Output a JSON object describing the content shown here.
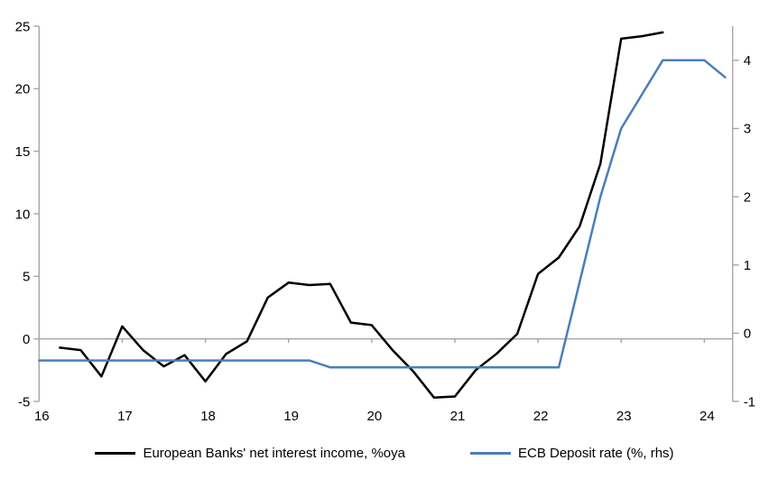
{
  "chart_data": {
    "type": "line",
    "title": "",
    "x_axis": {
      "ticks": [
        16,
        17,
        18,
        19,
        20,
        21,
        22,
        23,
        24
      ],
      "range": [
        16,
        24.34
      ]
    },
    "y_axis_left": {
      "ticks": [
        -5,
        0,
        5,
        10,
        15,
        20,
        25
      ],
      "range": [
        -5,
        25
      ]
    },
    "y_axis_right": {
      "ticks": [
        -1,
        0,
        1,
        2,
        3,
        4
      ],
      "range": [
        -1,
        4.5
      ]
    },
    "grid": false,
    "zero_line": true,
    "legend_position": "bottom",
    "series": [
      {
        "name": "European Banks' net interest income, %oya",
        "axis": "left",
        "color": "#000000",
        "x": [
          16.25,
          16.5,
          16.75,
          17.0,
          17.25,
          17.5,
          17.75,
          18.0,
          18.25,
          18.5,
          18.75,
          19.0,
          19.25,
          19.5,
          19.75,
          20.0,
          20.25,
          20.5,
          20.75,
          21.0,
          21.25,
          21.5,
          21.75,
          22.0,
          22.25,
          22.5,
          22.75,
          23.0,
          23.25,
          23.5
        ],
        "values": [
          -0.7,
          -0.9,
          -3.0,
          1.0,
          -0.9,
          -2.2,
          -1.3,
          -3.4,
          -1.2,
          -0.2,
          3.3,
          4.5,
          4.3,
          4.4,
          1.3,
          1.1,
          -0.9,
          -2.6,
          -4.7,
          -4.6,
          -2.5,
          -1.2,
          0.4,
          5.2,
          6.5,
          9.0,
          14.0,
          24.0,
          24.2,
          24.5
        ]
      },
      {
        "name": "ECB Deposit rate (%, rhs)",
        "axis": "right",
        "color": "#4A7EBB",
        "x": [
          16.0,
          16.25,
          16.5,
          16.75,
          17.0,
          17.25,
          17.5,
          17.75,
          18.0,
          18.25,
          18.5,
          18.75,
          19.0,
          19.25,
          19.5,
          19.75,
          20.0,
          20.25,
          20.5,
          20.75,
          21.0,
          21.25,
          21.5,
          21.75,
          22.0,
          22.25,
          22.5,
          22.75,
          23.0,
          23.25,
          23.5,
          23.75,
          24.0,
          24.25
        ],
        "values": [
          -0.4,
          -0.4,
          -0.4,
          -0.4,
          -0.4,
          -0.4,
          -0.4,
          -0.4,
          -0.4,
          -0.4,
          -0.4,
          -0.4,
          -0.4,
          -0.4,
          -0.5,
          -0.5,
          -0.5,
          -0.5,
          -0.5,
          -0.5,
          -0.5,
          -0.5,
          -0.5,
          -0.5,
          -0.5,
          -0.5,
          0.75,
          2.0,
          3.0,
          3.5,
          4.0,
          4.0,
          4.0,
          3.75
        ]
      }
    ]
  },
  "colors": {
    "axis": "#A6A6A6",
    "background": "#FFFFFF",
    "text": "#000000"
  }
}
